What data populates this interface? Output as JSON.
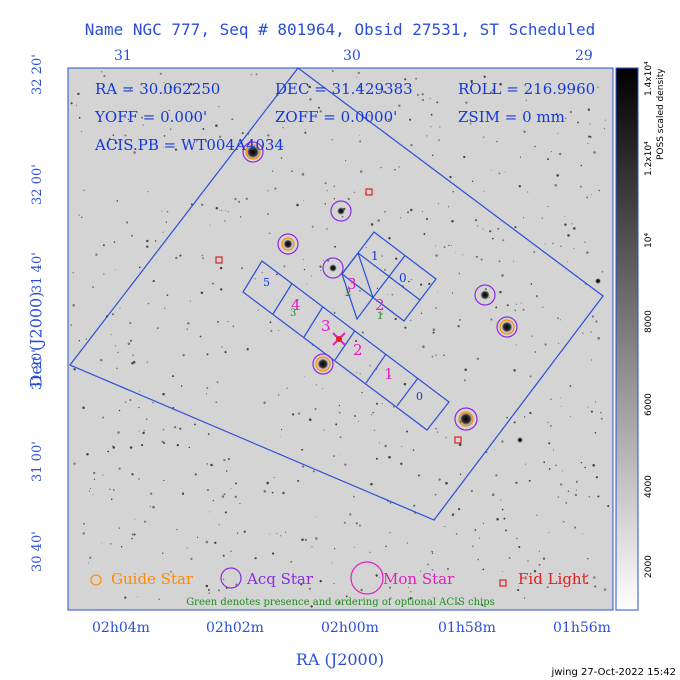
{
  "header": {
    "title": "Name NGC 777, Seq # 801964, Obsid 27531, ST Scheduled"
  },
  "axes": {
    "top_ticks": [
      "31",
      "30",
      "29"
    ],
    "bottom_ticks": [
      "02h04m",
      "02h02m",
      "02h00m",
      "01h58m",
      "01h56m"
    ],
    "left_ticks": [
      "32 20'",
      "32 00'",
      "31 40'",
      "31 20'",
      "31 00'",
      "30 40'"
    ],
    "xlabel": "RA (J2000)",
    "ylabel": "Dec (J2000)"
  },
  "info": {
    "ra": "RA = 30.062250",
    "dec": "DEC = 31.429383",
    "roll": "ROLL = 216.9960",
    "yoff": "YOFF = 0.000'",
    "zoff": "ZOFF = 0.0000'",
    "zsim": "ZSIM = 0 mm",
    "acis": "ACIS.PB = WT004A4034"
  },
  "chips": {
    "i_labels": [
      "1",
      "0",
      "3",
      "2"
    ],
    "s_labels": [
      "5",
      "4",
      "3",
      "2",
      "1",
      "0"
    ],
    "optional_labels": [
      "2",
      "3",
      "1"
    ]
  },
  "colorbar": {
    "label": "POSS scaled density",
    "ticks": [
      "2000",
      "4000",
      "6000",
      "8000",
      "10⁴",
      "1.2x10⁴",
      "1.4x10⁴"
    ]
  },
  "legend": {
    "guide": "Guide Star",
    "acq": "Acq Star",
    "mon": "Mon Star",
    "fid": "Fid Light",
    "note": "Green denotes presence and ordering of optional ACIS chips",
    "colors": {
      "guide": "#ff8c00",
      "acq": "#8a2be2",
      "mon": "#e020c0",
      "fid": "#e02020",
      "optional": "#1f8f1f"
    }
  },
  "footer": {
    "stamp": "jwing 27-Oct-2022 15:42"
  }
}
